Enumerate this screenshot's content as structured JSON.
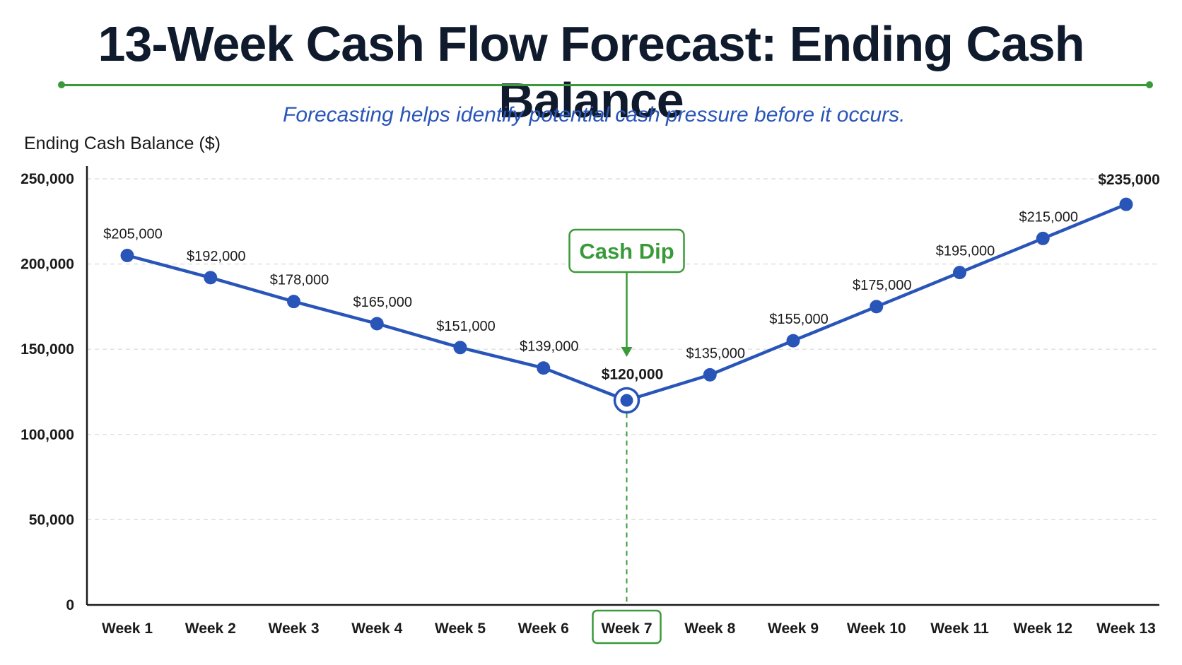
{
  "title": "13-Week Cash Flow Forecast: Ending Cash Balance",
  "subtitle": "Forecasting helps identify potential cash pressure before it occurs.",
  "colors": {
    "line": "#2a55b8",
    "accent": "#3a9a3a",
    "title": "#0f1b2d",
    "grid": "#d9d9d9"
  },
  "chart_data": {
    "type": "line",
    "title": "13-Week Cash Flow Forecast: Ending Cash Balance",
    "subtitle": "Forecasting helps identify potential cash pressure before it occurs.",
    "xlabel": "",
    "ylabel": "Ending Cash Balance ($)",
    "categories": [
      "Week 1",
      "Week 2",
      "Week 3",
      "Week 4",
      "Week 5",
      "Week 6",
      "Week 7",
      "Week 8",
      "Week 9",
      "Week 10",
      "Week 11",
      "Week 12",
      "Week 13"
    ],
    "series": [
      {
        "values": [
          205000,
          192000,
          178000,
          165000,
          151000,
          139000,
          120000,
          135000,
          155000,
          175000,
          195000,
          215000,
          235000
        ],
        "data_labels": [
          "$205,000",
          "$192,000",
          "$178,000",
          "$165,000",
          "$151,000",
          "$139,000",
          "$120,000",
          "$135,000",
          "$155,000",
          "$175,000",
          "$195,000",
          "$215,000",
          "$235,000"
        ]
      }
    ],
    "ylim": [
      0,
      250000
    ],
    "yticks": [
      0,
      50000,
      100000,
      150000,
      200000,
      250000
    ],
    "ytick_labels": [
      "0",
      "50,000",
      "100,000",
      "150,000",
      "200,000",
      "250,000"
    ],
    "grid": "horizontal dashed",
    "legend": "none",
    "annotation": {
      "text": "Cash Dip",
      "category": "Week 7",
      "value": 120000
    },
    "highlight_index": 6,
    "bold_label_indices": [
      6,
      12
    ]
  }
}
